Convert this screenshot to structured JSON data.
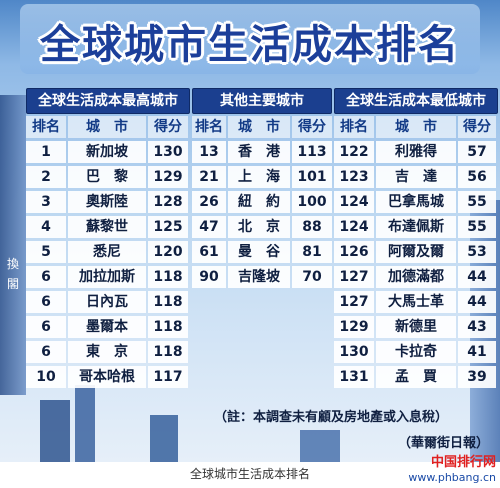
{
  "title": "全球城市生活成本排名",
  "edge_text": [
    "換",
    "閣"
  ],
  "columns": [
    "排名",
    "城　市",
    "得分"
  ],
  "tables": [
    {
      "heading": "全球生活成本最高城市",
      "rows": [
        {
          "rank": "1",
          "city": "新加坡",
          "score": "130"
        },
        {
          "rank": "2",
          "city": "巴　黎",
          "score": "129"
        },
        {
          "rank": "3",
          "city": "奧斯陸",
          "score": "128"
        },
        {
          "rank": "4",
          "city": "蘇黎世",
          "score": "125"
        },
        {
          "rank": "5",
          "city": "悉尼",
          "score": "120"
        },
        {
          "rank": "6",
          "city": "加拉加斯",
          "score": "118"
        },
        {
          "rank": "6",
          "city": "日內瓦",
          "score": "118"
        },
        {
          "rank": "6",
          "city": "墨爾本",
          "score": "118"
        },
        {
          "rank": "6",
          "city": "東　京",
          "score": "118"
        },
        {
          "rank": "10",
          "city": "哥本哈根",
          "score": "117"
        }
      ]
    },
    {
      "heading": "其他主要城市",
      "rows": [
        {
          "rank": "13",
          "city": "香　港",
          "score": "113"
        },
        {
          "rank": "21",
          "city": "上　海",
          "score": "101"
        },
        {
          "rank": "26",
          "city": "紐　約",
          "score": "100"
        },
        {
          "rank": "47",
          "city": "北　京",
          "score": "88"
        },
        {
          "rank": "61",
          "city": "曼　谷",
          "score": "81"
        },
        {
          "rank": "90",
          "city": "吉隆坡",
          "score": "70"
        }
      ]
    },
    {
      "heading": "全球生活成本最低城市",
      "rows": [
        {
          "rank": "122",
          "city": "利雅得",
          "score": "57"
        },
        {
          "rank": "123",
          "city": "吉　達",
          "score": "56"
        },
        {
          "rank": "124",
          "city": "巴拿馬城",
          "score": "55"
        },
        {
          "rank": "124",
          "city": "布達佩斯",
          "score": "55"
        },
        {
          "rank": "126",
          "city": "阿爾及爾",
          "score": "53"
        },
        {
          "rank": "127",
          "city": "加德滿都",
          "score": "44"
        },
        {
          "rank": "127",
          "city": "大馬士革",
          "score": "44"
        },
        {
          "rank": "129",
          "city": "新德里",
          "score": "43"
        },
        {
          "rank": "130",
          "city": "卡拉奇",
          "score": "41"
        },
        {
          "rank": "131",
          "city": "孟　買",
          "score": "39"
        }
      ]
    }
  ],
  "note": "（註：本調查未有顧及房地產或入息稅）",
  "source": "（華爾街日報）",
  "caption": "全球城市生活成本排名",
  "watermark": {
    "line1": "中国排行网",
    "line2": "www.phbang.cn"
  }
}
